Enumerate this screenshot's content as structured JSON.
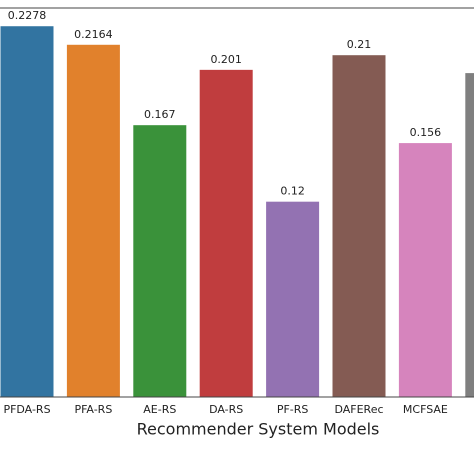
{
  "chart_data": {
    "type": "bar",
    "x_label": "Recommender System Models",
    "categories": [
      "PFDA-RS",
      "PFA-RS",
      "AE-RS",
      "DA-RS",
      "PF-RS",
      "DAFERec",
      "MCFSAE",
      null
    ],
    "values": [
      0.2278,
      0.2164,
      0.167,
      0.201,
      0.12,
      0.21,
      0.156,
      0.199
    ],
    "value_labels": [
      "0.2278",
      "0.2164",
      "0.167",
      "0.201",
      "0.12",
      "0.21",
      "0.156",
      null
    ],
    "colors": [
      "#3274a1",
      "#e1812c",
      "#3a923a",
      "#c03d3e",
      "#9372b2",
      "#845b53",
      "#d684bd",
      "#7f7f7f"
    ],
    "ylim": [
      0,
      0.239
    ]
  }
}
